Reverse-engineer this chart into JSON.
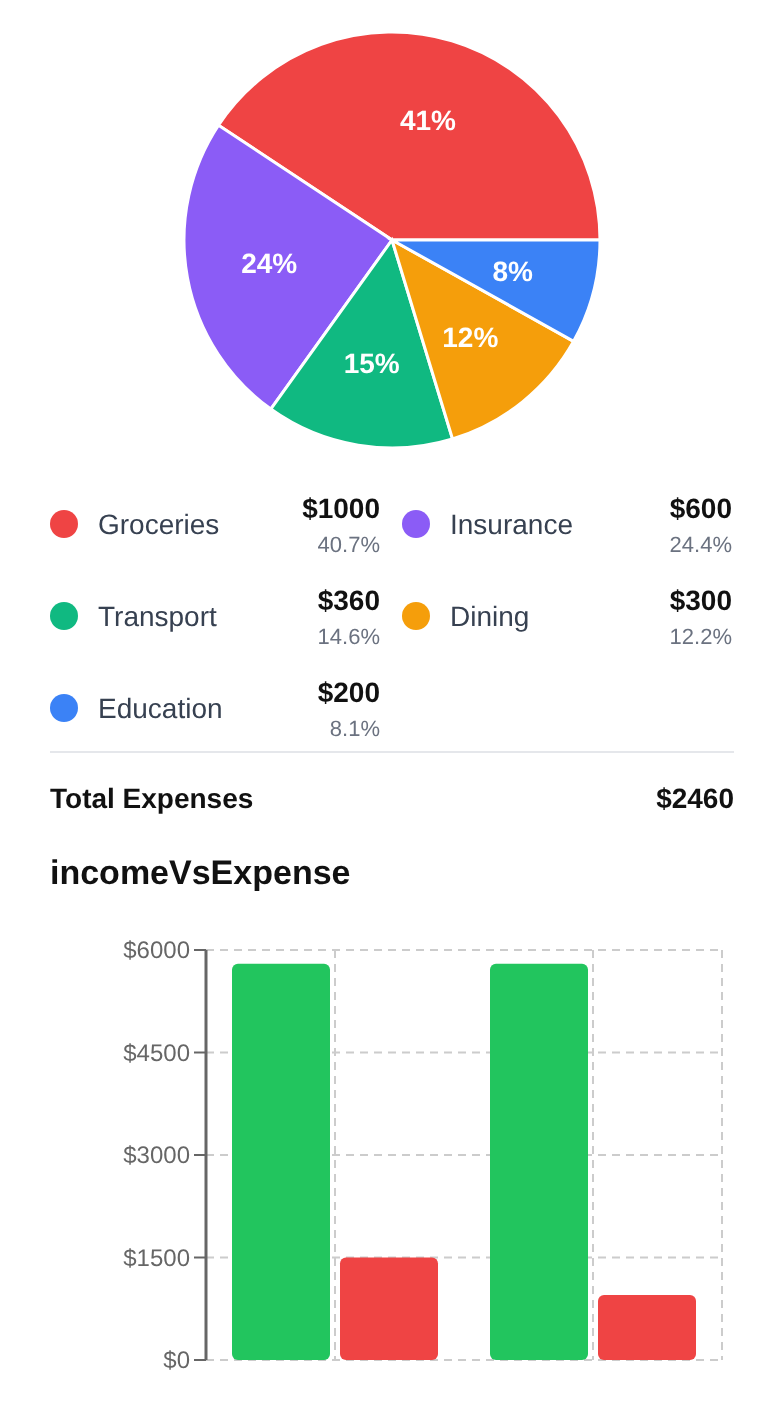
{
  "chart_data": [
    {
      "type": "pie",
      "categories": [
        "Groceries",
        "Insurance",
        "Transport",
        "Dining",
        "Education"
      ],
      "values": [
        40.7,
        24.4,
        14.6,
        12.2,
        8.1
      ],
      "colors": [
        "#ef4444",
        "#8b5cf6",
        "#10b981",
        "#f59e0b",
        "#3b82f6"
      ],
      "value_labels": [
        "41%",
        "24%",
        "15%",
        "12%",
        "8%"
      ],
      "legend": "bottom"
    },
    {
      "type": "other",
      "annotations": [
        "$1000",
        "40.7%",
        "$600",
        "24.4%",
        "$360",
        "14.6%",
        "$300",
        "12.2%",
        "$200",
        "8.1%",
        "Total Expenses",
        "$2460"
      ]
    },
    {
      "type": "bar",
      "title": "incomeVsExpense",
      "categories": [
        null,
        null
      ],
      "series": [
        {
          "color": "#22c55e",
          "values": [
            5800,
            5800
          ]
        },
        {
          "color": "#ef4444",
          "values": [
            1500,
            950
          ]
        }
      ],
      "ylim": [
        0,
        6000
      ],
      "yticks": [
        {
          "value": 0,
          "label": "$0"
        },
        {
          "value": 1500,
          "label": "$1500"
        },
        {
          "value": 3000,
          "label": "$3000"
        },
        {
          "value": 4500,
          "label": "$4500"
        },
        {
          "value": 6000,
          "label": "$6000"
        }
      ],
      "grid": true
    }
  ]
}
